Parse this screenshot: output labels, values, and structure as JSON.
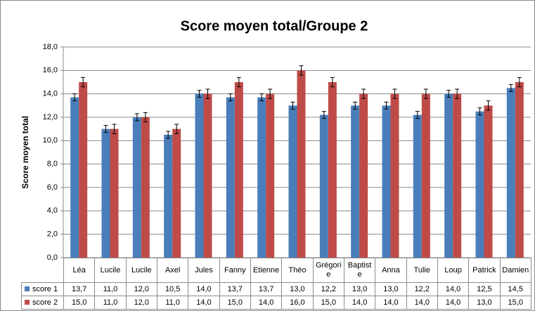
{
  "chart_data": {
    "type": "bar",
    "title": "Score moyen total/Groupe 2",
    "y_label": "Score moyen total",
    "categories": [
      "Léa",
      "Lucile",
      "Lucile",
      "Axel",
      "Jules",
      "Fanny",
      "Etienne",
      "Théo",
      "Grégorie",
      "Baptiste",
      "Anna",
      "Tulie",
      "Loup",
      "Patrick",
      "Damien"
    ],
    "series": [
      {
        "name": "score 1",
        "color": "#4a7ebb",
        "values": [
          13.7,
          11.0,
          12.0,
          10.5,
          14.0,
          13.7,
          13.7,
          13.0,
          12.2,
          13.0,
          13.0,
          12.2,
          14.0,
          12.5,
          14.5
        ],
        "value_labels": [
          "13,7",
          "11,0",
          "12,0",
          "10,5",
          "14,0",
          "13,7",
          "13,7",
          "13,0",
          "12,2",
          "13,0",
          "13,0",
          "12,2",
          "14,0",
          "12,5",
          "14,5"
        ],
        "errors": [
          0.3,
          0.3,
          0.3,
          0.3,
          0.3,
          0.3,
          0.3,
          0.3,
          0.3,
          0.3,
          0.3,
          0.3,
          0.3,
          0.3,
          0.3
        ]
      },
      {
        "name": "score 2",
        "color": "#be4b48",
        "values": [
          15.0,
          11.0,
          12.0,
          11.0,
          14.0,
          15.0,
          14.0,
          16.0,
          15.0,
          14.0,
          14.0,
          14.0,
          14.0,
          13.0,
          15.0
        ],
        "value_labels": [
          "15,0",
          "11,0",
          "12,0",
          "11,0",
          "14,0",
          "15,0",
          "14,0",
          "16,0",
          "15,0",
          "14,0",
          "14,0",
          "14,0",
          "14,0",
          "13,0",
          "15,0"
        ],
        "errors": [
          0.4,
          0.4,
          0.4,
          0.4,
          0.4,
          0.4,
          0.4,
          0.4,
          0.4,
          0.4,
          0.4,
          0.4,
          0.4,
          0.4,
          0.4
        ]
      }
    ],
    "ylim": [
      0,
      18
    ],
    "yticks": [
      {
        "value": 0,
        "label": "0,0"
      },
      {
        "value": 2,
        "label": "2,0"
      },
      {
        "value": 4,
        "label": "4,0"
      },
      {
        "value": 6,
        "label": "6,0"
      },
      {
        "value": 8,
        "label": "8,0"
      },
      {
        "value": 10,
        "label": "10,0"
      },
      {
        "value": 12,
        "label": "12,0"
      },
      {
        "value": 14,
        "label": "14,0"
      },
      {
        "value": 16,
        "label": "16,0"
      },
      {
        "value": 18,
        "label": "18,0"
      }
    ],
    "grid": true
  }
}
